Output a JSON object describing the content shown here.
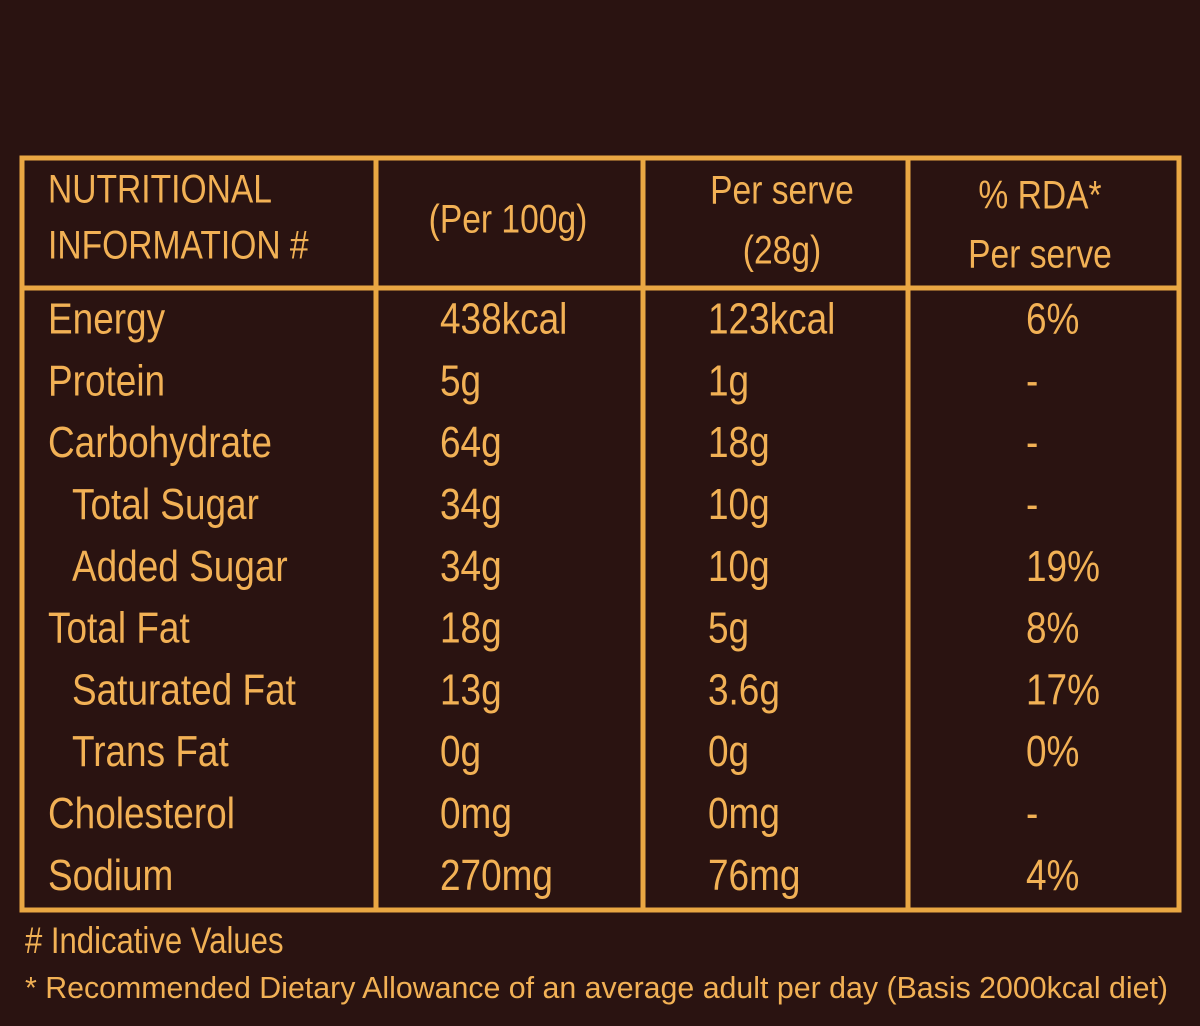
{
  "table": {
    "header": [
      [
        "NUTRITIONAL",
        "INFORMATION #"
      ],
      [
        "(Per 100g)"
      ],
      [
        "Per serve",
        "(28g)"
      ],
      [
        "% RDA*",
        "Per serve"
      ]
    ],
    "rows": [
      [
        "Energy",
        "438kcal",
        "123kcal",
        "6%"
      ],
      [
        "Protein",
        "5g",
        "1g",
        "-"
      ],
      [
        "Carbohydrate",
        "64g",
        "18g",
        "-"
      ],
      [
        "Total Sugar",
        "34g",
        "10g",
        "-"
      ],
      [
        "Added Sugar",
        "34g",
        "10g",
        "19%"
      ],
      [
        "Total Fat",
        "18g",
        "5g",
        "8%"
      ],
      [
        "Saturated Fat",
        "13g",
        "3.6g",
        "17%"
      ],
      [
        "Trans Fat",
        "0g",
        "0g",
        "0%"
      ],
      [
        "Cholesterol",
        "0mg",
        "0mg",
        "-"
      ],
      [
        "Sodium",
        "270mg",
        "76mg",
        "4%"
      ]
    ]
  },
  "footnotes": [
    "# Indicative Values",
    "* Recommended Dietary Allowance of an average adult per day (Basis 2000kcal diet)"
  ]
}
